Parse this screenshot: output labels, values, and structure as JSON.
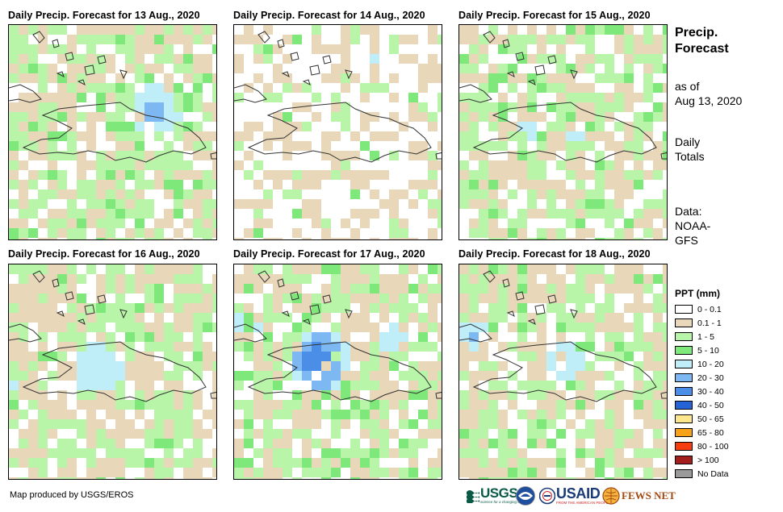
{
  "panels": [
    {
      "title": "Daily Precip. Forecast for 13 Aug., 2020"
    },
    {
      "title": "Daily Precip. Forecast for 14 Aug., 2020"
    },
    {
      "title": "Daily Precip. Forecast for 15 Aug., 2020"
    },
    {
      "title": "Daily Precip. Forecast for 16 Aug., 2020"
    },
    {
      "title": "Daily Precip. Forecast for 17 Aug., 2020"
    },
    {
      "title": "Daily Precip. Forecast for 18 Aug., 2020"
    }
  ],
  "side": {
    "title_line1": "Precip.",
    "title_line2": "Forecast",
    "asof_line1": "as of",
    "asof_line2": "Aug 13, 2020",
    "daily_line1": "Daily",
    "daily_line2": "Totals",
    "data_line1": "Data:",
    "data_line2": "NOAA-",
    "data_line3": "GFS"
  },
  "legend": {
    "title": "PPT (mm)",
    "items": [
      {
        "label": "0 - 0.1",
        "color": "#ffffff"
      },
      {
        "label": "0.1 - 1",
        "color": "#e8d7b8"
      },
      {
        "label": "1 - 5",
        "color": "#b8f5a8"
      },
      {
        "label": "5 - 10",
        "color": "#7fe87a"
      },
      {
        "label": "10 - 20",
        "color": "#bfeef8"
      },
      {
        "label": "20 - 30",
        "color": "#7eb8f2"
      },
      {
        "label": "30 - 40",
        "color": "#4a8ee8"
      },
      {
        "label": "40 - 50",
        "color": "#2464d6"
      },
      {
        "label": "50 - 65",
        "color": "#fde78c"
      },
      {
        "label": "65 - 80",
        "color": "#f8a21a"
      },
      {
        "label": "80 - 100",
        "color": "#f53d10"
      },
      {
        "label": "> 100",
        "color": "#a51e1e"
      },
      {
        "label": "No Data",
        "color": "#9a9a9a"
      }
    ]
  },
  "footer": {
    "credit": "Map produced by USGS/EROS",
    "usgs": "USGS",
    "usgs_tagline": "science for a changing world",
    "usaid": "USAID",
    "usaid_tagline": "FROM THE AMERICAN PEOPLE",
    "fewsnet": "FEWS NET"
  }
}
